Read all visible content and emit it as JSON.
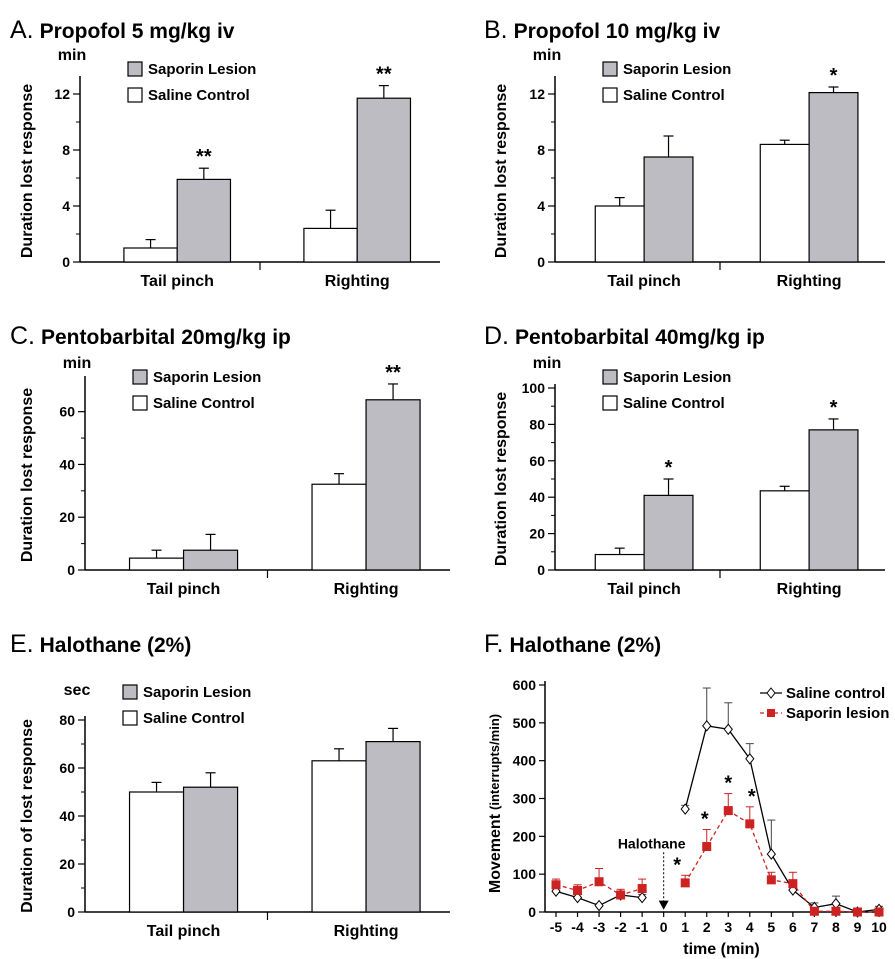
{
  "chart_data": [
    {
      "type": "bar",
      "panel_letter": "A.",
      "title": "Propofol 5 mg/kg iv",
      "unit": "min",
      "ylabel": "Duration lost response",
      "ylim": [
        0,
        13
      ],
      "yticks": [
        0,
        4,
        8,
        12
      ],
      "categories": [
        "Tail pinch",
        "Righting"
      ],
      "series": [
        {
          "name": "Saline Control",
          "values": [
            1.0,
            2.4
          ],
          "errors": [
            0.6,
            1.3
          ]
        },
        {
          "name": "Saporin Lesion",
          "values": [
            5.9,
            11.7
          ],
          "errors": [
            0.8,
            0.9
          ]
        }
      ],
      "significance": {
        "Saporin Lesion": [
          "**",
          "**"
        ]
      }
    },
    {
      "type": "bar",
      "panel_letter": "B.",
      "title": "Propofol 10 mg/kg iv",
      "unit": "min",
      "ylabel": "Duration lost response",
      "ylim": [
        0,
        13
      ],
      "yticks": [
        0,
        4,
        8,
        12
      ],
      "categories": [
        "Tail pinch",
        "Righting"
      ],
      "series": [
        {
          "name": "Saline Control",
          "values": [
            4.0,
            8.4
          ],
          "errors": [
            0.6,
            0.3
          ]
        },
        {
          "name": "Saporin Lesion",
          "values": [
            7.5,
            12.1
          ],
          "errors": [
            1.5,
            0.4
          ]
        }
      ],
      "significance": {
        "Saporin Lesion": [
          "",
          "*"
        ]
      }
    },
    {
      "type": "bar",
      "panel_letter": "C.",
      "title": "Pentobarbital",
      "title_dose": "20mg/kg ip",
      "unit": "min",
      "ylabel": "Duration lost response",
      "ylim": [
        0,
        72
      ],
      "yticks": [
        0,
        20,
        40,
        60
      ],
      "categories": [
        "Tail pinch",
        "Righting"
      ],
      "series": [
        {
          "name": "Saline Control",
          "values": [
            4.5,
            32.5
          ],
          "errors": [
            3.0,
            4.0
          ]
        },
        {
          "name": "Saporin Lesion",
          "values": [
            7.5,
            64.5
          ],
          "errors": [
            6.0,
            6.0
          ]
        }
      ],
      "significance": {
        "Saporin Lesion": [
          "",
          "**"
        ]
      }
    },
    {
      "type": "bar",
      "panel_letter": "D.",
      "title": "Pentobarbital",
      "title_dose": "40mg/kg ip",
      "unit": "min",
      "ylabel": "Duration lost response",
      "ylim": [
        0,
        100
      ],
      "yticks": [
        0,
        20,
        40,
        60,
        80,
        100
      ],
      "categories": [
        "Tail pinch",
        "Righting"
      ],
      "series": [
        {
          "name": "Saline Control",
          "values": [
            8.5,
            43.5
          ],
          "errors": [
            3.5,
            2.5
          ]
        },
        {
          "name": "Saporin Lesion",
          "values": [
            41.0,
            77.0
          ],
          "errors": [
            9.0,
            6.0
          ]
        }
      ],
      "significance": {
        "Saporin Lesion": [
          "*",
          "*"
        ]
      }
    },
    {
      "type": "bar",
      "panel_letter": "E.",
      "title": "Halothane (2%)",
      "unit": "sec",
      "ylabel": "Duration of lost response",
      "ylim": [
        0,
        80
      ],
      "yticks": [
        0,
        20,
        40,
        60,
        80
      ],
      "categories": [
        "Tail pinch",
        "Righting"
      ],
      "series": [
        {
          "name": "Saline Control",
          "values": [
            50.0,
            63.0
          ],
          "errors": [
            4.0,
            5.0
          ]
        },
        {
          "name": "Saporin Lesion",
          "values": [
            52.0,
            71.0
          ],
          "errors": [
            6.0,
            5.5
          ]
        }
      ],
      "significance": {
        "Saporin Lesion": [
          "",
          ""
        ]
      }
    },
    {
      "type": "line",
      "panel_letter": "F.",
      "title": "Halothane (2%)",
      "ylabel": "Movement",
      "ylabel_unit": "(interrupts/min)",
      "xlabel": "time (min)",
      "xlim": [
        -5,
        10
      ],
      "xticks": [
        -5,
        -4,
        -3,
        -2,
        -1,
        0,
        1,
        2,
        3,
        4,
        5,
        6,
        7,
        8,
        9,
        10
      ],
      "ylim": [
        0,
        600
      ],
      "yticks": [
        0,
        100,
        200,
        300,
        400,
        500,
        600
      ],
      "annotation": {
        "text": "Halothane",
        "x": 0
      },
      "series": [
        {
          "name": "Saline control",
          "color": "#000000",
          "marker": "open-diamond",
          "line": "solid",
          "segments": [
            {
              "x": [
                -5,
                -4,
                -3,
                -2,
                -1
              ],
              "y": [
                55,
                38,
                17,
                45,
                38
              ],
              "err": [
                10,
                8,
                5,
                8,
                8
              ]
            },
            {
              "x": [
                1,
                2,
                3,
                4,
                5,
                6,
                7,
                8,
                9,
                10
              ],
              "y": [
                272,
                492,
                483,
                405,
                153,
                58,
                12,
                22,
                0,
                7
              ],
              "err": [
                10,
                100,
                70,
                40,
                90,
                15,
                12,
                20,
                3,
                8
              ]
            }
          ]
        },
        {
          "name": "Saporin lesion",
          "color": "#cc2222",
          "marker": "filled-square",
          "line": "dashed",
          "segments": [
            {
              "x": [
                -5,
                -4,
                -3,
                -2,
                -1
              ],
              "y": [
                72,
                57,
                80,
                45,
                62
              ],
              "err": [
                15,
                15,
                35,
                15,
                25
              ]
            },
            {
              "x": [
                1,
                2,
                3,
                4,
                5,
                6,
                7,
                8,
                9,
                10
              ],
              "y": [
                77,
                173,
                268,
                233,
                85,
                75,
                2,
                2,
                0,
                0
              ],
              "err": [
                20,
                45,
                45,
                45,
                20,
                30,
                5,
                5,
                2,
                2
              ]
            }
          ]
        }
      ],
      "significance": {
        "Saporin lesion": {
          "x": [
            1,
            2,
            3,
            4
          ],
          "mark": "*"
        }
      }
    }
  ]
}
